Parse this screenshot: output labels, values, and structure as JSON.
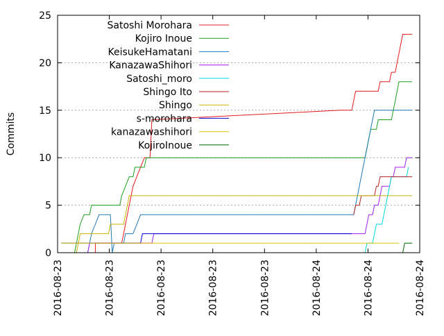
{
  "chart_data": {
    "type": "line",
    "ylabel": "Commits",
    "ylim": [
      0,
      25
    ],
    "y_ticks": [
      0,
      5,
      10,
      15,
      20,
      25
    ],
    "x_ticks": [
      "2016-08-23",
      "2016-08-23",
      "2016-08-23",
      "2016-08-23",
      "2016-08-23",
      "2016-08-24",
      "2016-08-24",
      "2016-08-24"
    ],
    "xlim": [
      "2016-08-23T11:00",
      "2016-08-24T03:00"
    ],
    "grid": "dotted horizontal",
    "legend_position": "top-left",
    "series": [
      {
        "name": "Satoshi Morohara",
        "color": "#e41a1c",
        "points": [
          [
            "2016-08-23T11:40",
            0
          ],
          [
            "2016-08-23T12:40",
            0
          ],
          [
            "2016-08-23T12:40",
            1
          ],
          [
            "2016-08-23T13:50",
            1
          ],
          [
            "2016-08-23T13:55",
            2
          ],
          [
            "2016-08-23T14:00",
            3
          ],
          [
            "2016-08-23T14:05",
            4
          ],
          [
            "2016-08-23T14:10",
            5
          ],
          [
            "2016-08-23T14:15",
            6
          ],
          [
            "2016-08-23T14:20",
            7
          ],
          [
            "2016-08-23T14:30",
            8
          ],
          [
            "2016-08-23T14:40",
            9
          ],
          [
            "2016-08-23T14:50",
            10
          ],
          [
            "2016-08-23T15:05",
            10
          ],
          [
            "2016-08-23T15:10",
            14
          ],
          [
            "2016-08-23T23:30",
            15
          ],
          [
            "2016-08-24T00:00",
            15
          ],
          [
            "2016-08-24T00:05",
            16
          ],
          [
            "2016-08-24T00:10",
            17
          ],
          [
            "2016-08-24T01:10",
            17
          ],
          [
            "2016-08-24T01:15",
            18
          ],
          [
            "2016-08-24T01:40",
            18
          ],
          [
            "2016-08-24T01:45",
            19
          ],
          [
            "2016-08-24T01:55",
            19
          ],
          [
            "2016-08-24T02:00",
            20
          ],
          [
            "2016-08-24T02:05",
            21
          ],
          [
            "2016-08-24T02:10",
            22
          ],
          [
            "2016-08-24T02:15",
            23
          ],
          [
            "2016-08-24T02:40",
            23
          ]
        ]
      },
      {
        "name": "Kojiro Inoue",
        "color": "#1a9e1a",
        "points": [
          [
            "2016-08-23T11:45",
            0
          ],
          [
            "2016-08-23T11:50",
            1
          ],
          [
            "2016-08-23T12:00",
            3
          ],
          [
            "2016-08-23T12:10",
            4
          ],
          [
            "2016-08-23T12:25",
            4
          ],
          [
            "2016-08-23T12:30",
            5
          ],
          [
            "2016-08-23T13:45",
            5
          ],
          [
            "2016-08-23T13:50",
            6
          ],
          [
            "2016-08-23T14:00",
            7
          ],
          [
            "2016-08-23T14:10",
            8
          ],
          [
            "2016-08-23T14:20",
            8
          ],
          [
            "2016-08-23T14:25",
            9
          ],
          [
            "2016-08-23T14:50",
            9
          ],
          [
            "2016-08-23T14:55",
            10
          ],
          [
            "2016-08-24T00:35",
            10
          ],
          [
            "2016-08-24T00:40",
            11
          ],
          [
            "2016-08-24T00:45",
            12
          ],
          [
            "2016-08-24T00:50",
            13
          ],
          [
            "2016-08-24T01:05",
            13
          ],
          [
            "2016-08-24T01:10",
            14
          ],
          [
            "2016-08-24T01:45",
            14
          ],
          [
            "2016-08-24T01:50",
            15
          ],
          [
            "2016-08-24T01:55",
            16
          ],
          [
            "2016-08-24T02:00",
            17
          ],
          [
            "2016-08-24T02:05",
            18
          ],
          [
            "2016-08-24T02:40",
            18
          ]
        ]
      },
      {
        "name": "KeisukeHamatani",
        "color": "#1f78b4",
        "points": [
          [
            "2016-08-23T12:20",
            0
          ],
          [
            "2016-08-23T12:25",
            1
          ],
          [
            "2016-08-23T12:30",
            2
          ],
          [
            "2016-08-23T12:40",
            3
          ],
          [
            "2016-08-23T12:50",
            4
          ],
          [
            "2016-08-23T13:20",
            4
          ],
          [
            "2016-08-23T13:25",
            0
          ],
          [
            "2016-08-23T13:30",
            1
          ],
          [
            "2016-08-23T13:55",
            1
          ],
          [
            "2016-08-23T14:00",
            2
          ],
          [
            "2016-08-23T14:20",
            2
          ],
          [
            "2016-08-23T14:30",
            3
          ],
          [
            "2016-08-23T14:40",
            4
          ],
          [
            "2016-08-24T00:05",
            4
          ],
          [
            "2016-08-24T00:10",
            5
          ],
          [
            "2016-08-24T00:15",
            6
          ],
          [
            "2016-08-24T00:20",
            7
          ],
          [
            "2016-08-24T00:25",
            8
          ],
          [
            "2016-08-24T00:30",
            9
          ],
          [
            "2016-08-24T00:35",
            10
          ],
          [
            "2016-08-24T00:40",
            11
          ],
          [
            "2016-08-24T00:45",
            12
          ],
          [
            "2016-08-24T00:50",
            13
          ],
          [
            "2016-08-24T00:55",
            14
          ],
          [
            "2016-08-24T01:00",
            15
          ],
          [
            "2016-08-24T02:40",
            15
          ]
        ]
      },
      {
        "name": "KanazawaShihori",
        "color": "#a020f0",
        "points": [
          [
            "2016-08-23T12:20",
            0
          ],
          [
            "2016-08-23T12:25",
            1
          ],
          [
            "2016-08-23T15:10",
            1
          ],
          [
            "2016-08-23T15:15",
            2
          ],
          [
            "2016-08-23T15:35",
            2
          ],
          [
            "2016-08-24T00:35",
            2
          ],
          [
            "2016-08-24T00:40",
            3
          ],
          [
            "2016-08-24T00:45",
            4
          ],
          [
            "2016-08-24T00:55",
            4
          ],
          [
            "2016-08-24T01:00",
            5
          ],
          [
            "2016-08-24T01:10",
            5
          ],
          [
            "2016-08-24T01:15",
            6
          ],
          [
            "2016-08-24T01:20",
            7
          ],
          [
            "2016-08-24T01:40",
            7
          ],
          [
            "2016-08-24T01:45",
            8
          ],
          [
            "2016-08-24T01:50",
            8
          ],
          [
            "2016-08-24T01:55",
            9
          ],
          [
            "2016-08-24T02:20",
            9
          ],
          [
            "2016-08-24T02:25",
            10
          ],
          [
            "2016-08-24T02:40",
            10
          ]
        ]
      },
      {
        "name": "Satoshi_moro",
        "color": "#00d8e0",
        "points": [
          [
            "2016-08-24T00:35",
            0
          ],
          [
            "2016-08-24T00:40",
            1
          ],
          [
            "2016-08-24T00:55",
            1
          ],
          [
            "2016-08-24T01:00",
            2
          ],
          [
            "2016-08-24T01:05",
            3
          ],
          [
            "2016-08-24T01:20",
            3
          ],
          [
            "2016-08-24T01:25",
            4
          ],
          [
            "2016-08-24T01:30",
            5
          ],
          [
            "2016-08-24T01:35",
            6
          ],
          [
            "2016-08-24T01:40",
            7
          ],
          [
            "2016-08-24T01:45",
            8
          ],
          [
            "2016-08-24T02:25",
            8
          ],
          [
            "2016-08-24T02:30",
            9
          ]
        ]
      },
      {
        "name": "Shingo Ito",
        "color": "#b22222",
        "points": [
          [
            "2016-08-24T00:05",
            4
          ],
          [
            "2016-08-24T00:10",
            5
          ],
          [
            "2016-08-24T00:20",
            5
          ],
          [
            "2016-08-24T00:25",
            6
          ],
          [
            "2016-08-24T01:00",
            6
          ],
          [
            "2016-08-24T01:05",
            7
          ],
          [
            "2016-08-24T01:10",
            7
          ],
          [
            "2016-08-24T01:15",
            8
          ],
          [
            "2016-08-24T02:40",
            8
          ]
        ]
      },
      {
        "name": "Shingo",
        "color": "#c8b400",
        "points": [
          [
            "2016-08-23T11:50",
            0
          ],
          [
            "2016-08-23T11:55",
            1
          ],
          [
            "2016-08-23T12:00",
            2
          ],
          [
            "2016-08-23T13:15",
            2
          ],
          [
            "2016-08-23T13:20",
            3
          ],
          [
            "2016-08-23T13:55",
            3
          ],
          [
            "2016-08-23T14:00",
            4
          ],
          [
            "2016-08-23T14:05",
            5
          ],
          [
            "2016-08-23T14:10",
            6
          ],
          [
            "2016-08-24T02:40",
            6
          ]
        ]
      },
      {
        "name": "s-morohara",
        "color": "#0000cd",
        "points": [
          [
            "2016-08-23T11:10",
            1
          ],
          [
            "2016-08-23T14:40",
            1
          ],
          [
            "2016-08-23T14:45",
            2
          ],
          [
            "2016-08-24T00:00",
            2
          ]
        ]
      },
      {
        "name": "kanazawashihori",
        "color": "#e6c200",
        "points": [
          [
            "2016-08-23T11:10",
            1
          ],
          [
            "2016-08-23T15:00",
            1
          ],
          [
            "2016-08-24T02:05",
            1
          ]
        ]
      },
      {
        "name": "KojiroInoue",
        "color": "#006400",
        "points": [
          [
            "2016-08-24T02:15",
            0
          ],
          [
            "2016-08-24T02:20",
            1
          ],
          [
            "2016-08-24T02:40",
            1
          ]
        ]
      }
    ]
  }
}
